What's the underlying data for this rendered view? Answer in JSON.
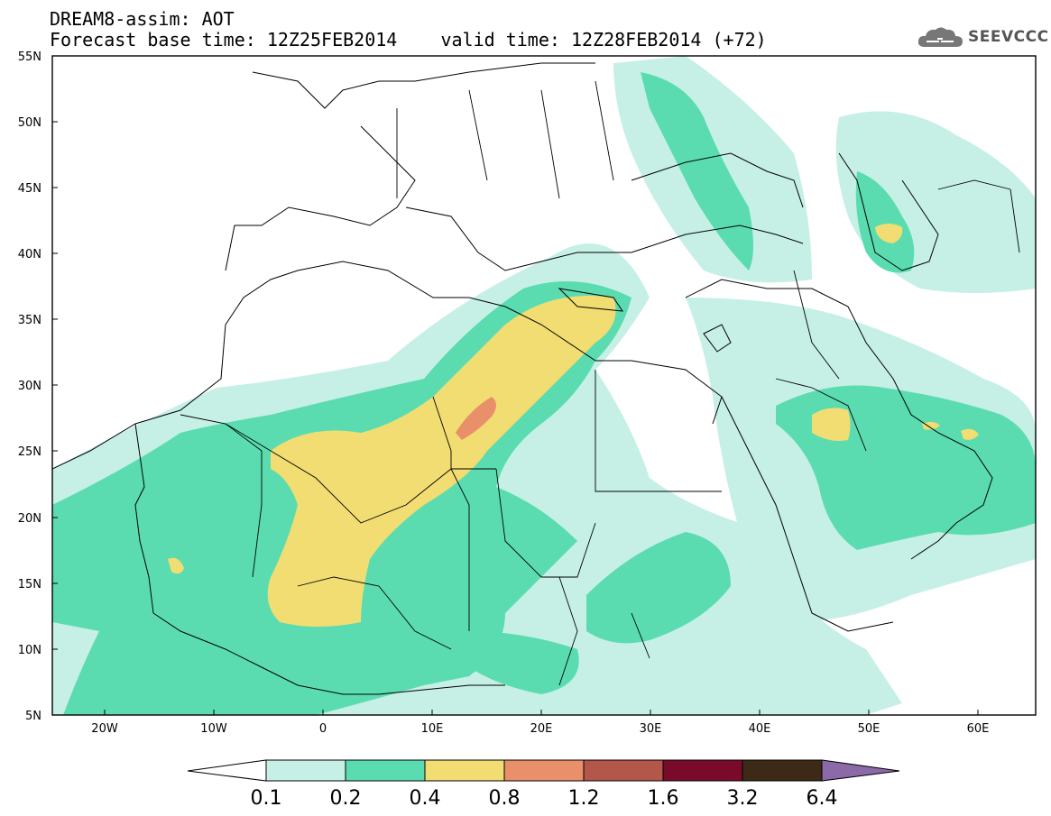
{
  "header": {
    "title_line1": "DREAM8-assim: AOT",
    "title_line2": "Forecast base time: 12Z25FEB2014    valid time: 12Z28FEB2014 (+72)",
    "logo_text": "SEEVCCC"
  },
  "map": {
    "lat_labels": [
      "55N",
      "50N",
      "45N",
      "40N",
      "35N",
      "30N",
      "25N",
      "20N",
      "15N",
      "10N",
      "5N"
    ],
    "lon_labels": [
      "20W",
      "10W",
      "0",
      "10E",
      "20E",
      "30E",
      "40E",
      "50E",
      "60E"
    ]
  },
  "colorbar": {
    "labels": [
      "0.1",
      "0.2",
      "0.4",
      "0.8",
      "1.2",
      "1.6",
      "3.2",
      "6.4"
    ],
    "colors": [
      "#ffffff",
      "#c6f0e6",
      "#5bdcb0",
      "#f2dd73",
      "#e9906a",
      "#b2574a",
      "#7a0a2a",
      "#3c2a17",
      "#8c6aaa"
    ]
  }
}
